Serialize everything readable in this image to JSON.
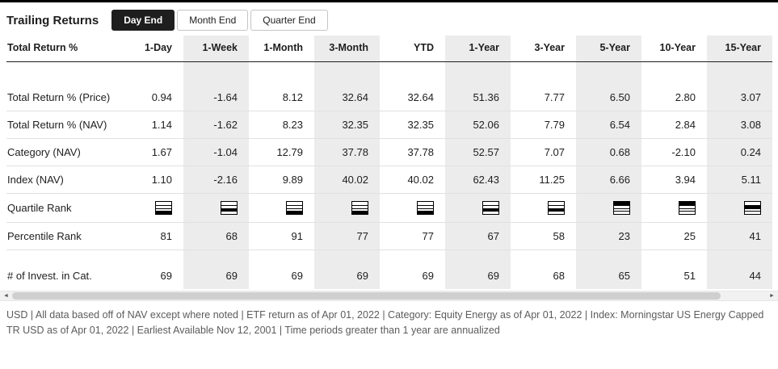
{
  "header": {
    "title": "Trailing Returns",
    "toggles": [
      {
        "label": "Day End",
        "active": true
      },
      {
        "label": "Month End",
        "active": false
      },
      {
        "label": "Quarter End",
        "active": false
      }
    ]
  },
  "table": {
    "corner_label": "Total Return %",
    "columns": [
      "1-Day",
      "1-Week",
      "1-Month",
      "3-Month",
      "YTD",
      "1-Year",
      "3-Year",
      "5-Year",
      "10-Year",
      "15-Year"
    ],
    "rows": [
      {
        "label": "Total Return % (Price)",
        "type": "number",
        "values": [
          "0.94",
          "-1.64",
          "8.12",
          "32.64",
          "32.64",
          "51.36",
          "7.77",
          "6.50",
          "2.80",
          "3.07"
        ]
      },
      {
        "label": "Total Return % (NAV)",
        "type": "number",
        "values": [
          "1.14",
          "-1.62",
          "8.23",
          "32.35",
          "32.35",
          "52.06",
          "7.79",
          "6.54",
          "2.84",
          "3.08"
        ]
      },
      {
        "label": "Category (NAV)",
        "type": "number",
        "values": [
          "1.67",
          "-1.04",
          "12.79",
          "37.78",
          "37.78",
          "52.57",
          "7.07",
          "0.68",
          "-2.10",
          "0.24"
        ]
      },
      {
        "label": "Index (NAV)",
        "type": "number",
        "values": [
          "1.10",
          "-2.16",
          "9.89",
          "40.02",
          "40.02",
          "62.43",
          "11.25",
          "6.66",
          "3.94",
          "5.11"
        ]
      },
      {
        "label": "Quartile Rank",
        "type": "quartile",
        "values": [
          4,
          3,
          4,
          4,
          4,
          3,
          3,
          1,
          1,
          2
        ]
      },
      {
        "label": "Percentile Rank",
        "type": "number",
        "values": [
          "81",
          "68",
          "91",
          "77",
          "77",
          "67",
          "58",
          "23",
          "25",
          "41"
        ]
      },
      {
        "label": "# of Invest. in Cat.",
        "type": "number",
        "values": [
          "69",
          "69",
          "69",
          "69",
          "69",
          "69",
          "68",
          "65",
          "51",
          "44"
        ]
      }
    ]
  },
  "scrollbar": {
    "left_arrow": "◄",
    "right_arrow": "►"
  },
  "footnote": "USD | All data based off of NAV except where noted | ETF return as of Apr 01, 2022 | Category: Equity Energy as of Apr 01, 2022 | Index: Morningstar US Energy Capped TR USD as of Apr 01, 2022 | Earliest Available Nov 12, 2001 | Time periods greater than 1 year are annualized",
  "colors": {
    "accent_black": "#1e1e1e",
    "column_stripe": "#ececec"
  }
}
